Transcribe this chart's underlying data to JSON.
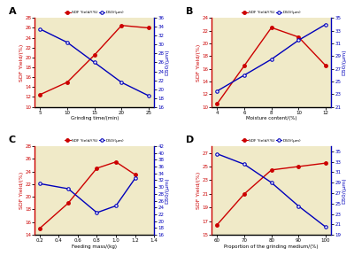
{
  "background_color": "#f0eac8",
  "panels": [
    {
      "label": "A",
      "xlabel": "Grinding time/(min)",
      "x_red": [
        5,
        10,
        15,
        20,
        25
      ],
      "y_red": [
        12.5,
        15.0,
        20.5,
        26.5,
        26.0
      ],
      "x_blue": [
        5,
        10,
        15,
        20,
        25
      ],
      "y_blue": [
        33.5,
        30.5,
        26.0,
        21.5,
        18.5
      ],
      "ylim_left": [
        10,
        28
      ],
      "ylim_right": [
        16,
        36
      ],
      "yticks_left": [
        10,
        12,
        14,
        16,
        18,
        20,
        22,
        24,
        26,
        28
      ],
      "yticks_right": [
        16,
        18,
        20,
        22,
        24,
        26,
        28,
        30,
        32,
        34,
        36
      ],
      "xticks": [
        5,
        10,
        15,
        20,
        25
      ]
    },
    {
      "label": "B",
      "xlabel": "Moisture content/(%)",
      "x_red": [
        4,
        6,
        8,
        10,
        12
      ],
      "y_red": [
        10.5,
        16.5,
        22.5,
        21.0,
        16.5
      ],
      "x_blue": [
        4,
        6,
        8,
        10,
        12
      ],
      "y_blue": [
        23.5,
        26.0,
        28.5,
        31.5,
        34.0
      ],
      "ylim_left": [
        10,
        24
      ],
      "ylim_right": [
        21,
        35
      ],
      "yticks_left": [
        10,
        12,
        14,
        16,
        18,
        20,
        22,
        24
      ],
      "yticks_right": [
        21,
        23,
        25,
        27,
        29,
        31,
        33,
        35
      ],
      "xticks": [
        4,
        6,
        8,
        10,
        12
      ]
    },
    {
      "label": "C",
      "xlabel": "Feeding mass/(kg)",
      "x_red": [
        0.2,
        0.5,
        0.8,
        1.0,
        1.2
      ],
      "y_red": [
        15.0,
        19.0,
        24.5,
        25.5,
        23.5
      ],
      "x_blue": [
        0.2,
        0.5,
        0.8,
        1.0,
        1.2
      ],
      "y_blue": [
        31.0,
        29.5,
        22.5,
        24.5,
        32.5
      ],
      "ylim_left": [
        14,
        28
      ],
      "ylim_right": [
        16,
        42
      ],
      "yticks_left": [
        14,
        16,
        18,
        20,
        22,
        24,
        26,
        28
      ],
      "yticks_right": [
        16,
        18,
        20,
        22,
        24,
        26,
        28,
        30,
        32,
        34,
        36,
        38,
        40,
        42
      ],
      "xticks": [
        0.2,
        0.4,
        0.6,
        0.8,
        1.0,
        1.2,
        1.4
      ]
    },
    {
      "label": "D",
      "xlabel": "Proportion of the grinding medium/(%)",
      "x_red": [
        60,
        70,
        80,
        90,
        100
      ],
      "y_red": [
        16.5,
        21.0,
        24.5,
        25.0,
        25.5
      ],
      "x_blue": [
        60,
        70,
        80,
        90,
        100
      ],
      "y_blue": [
        34.5,
        32.5,
        29.0,
        24.5,
        20.5
      ],
      "ylim_left": [
        15,
        28
      ],
      "ylim_right": [
        19,
        36
      ],
      "yticks_left": [
        15,
        17,
        19,
        21,
        23,
        25,
        27
      ],
      "yticks_right": [
        19,
        21,
        23,
        25,
        27,
        29,
        31,
        33,
        35
      ],
      "xticks": [
        60,
        70,
        80,
        90,
        100
      ]
    }
  ],
  "red_color": "#cc0000",
  "blue_color": "#0000bb",
  "red_label": "SDF Yield/(%)",
  "blue_label": "D50/(μm)",
  "left_ylabel": "SDF Yield/(%)",
  "right_ylabel": "D50/(μm)"
}
